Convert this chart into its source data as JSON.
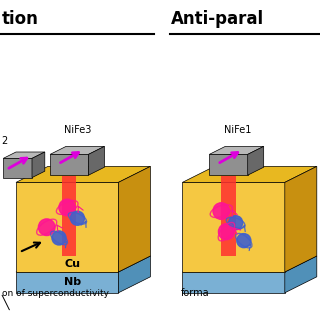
{
  "title_left": "tion",
  "title_left_underline": true,
  "label_nife2": "2",
  "label_nife3": "NiFe3",
  "label_cu": "Cu",
  "label_nb": "Nb",
  "title_right": "Anti-paral",
  "title_right_underline": true,
  "label_nife_right": "NiFe1",
  "caption_left": "on of superconductivity",
  "caption_right": "forma",
  "bg_color": "#ffffff",
  "yellow_color": "#f5c842",
  "yellow_dark": "#c8a020",
  "blue_layer_color": "#7ab0d4",
  "gray_color": "#808080",
  "gray_dark": "#606060",
  "magenta_arrow_color": "#cc00cc",
  "red_beam_color": "#ff2020",
  "pink_ball_color": "#ff1493",
  "blue_ball_color": "#4444cc"
}
